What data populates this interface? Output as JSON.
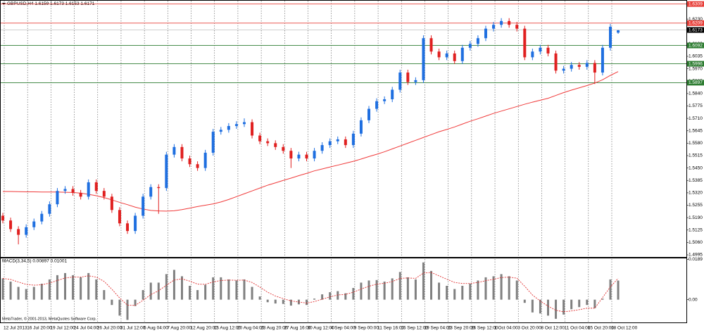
{
  "chart_data": [
    {
      "type": "candlestick",
      "title": "GBPUSD,H4  1.6159 1.6173 1.6153 1.6171",
      "up_color": "#1f6fe0",
      "down_color": "#e02020",
      "grid": true,
      "categories": [
        "12 Jul 2013",
        null,
        null,
        "16 Jul 20:00",
        null,
        null,
        "19 Jul 12:00",
        null,
        null,
        "24 Jul 04:00",
        null,
        null,
        "26 Jul 20:00",
        null,
        null,
        "31 Jul 12:00",
        null,
        null,
        "5 Aug 04:00",
        null,
        null,
        "7 Aug 20:00",
        null,
        null,
        "12 Aug 20:00",
        null,
        null,
        "15 Aug 12:00",
        null,
        null,
        "20 Aug 04:00",
        null,
        null,
        "23 Aug 20:00",
        null,
        null,
        "27 Aug 16:00",
        null,
        null,
        "30 Aug 12:00",
        null,
        null,
        "4 Sep 04:00",
        null,
        null,
        "9 Sep 00:00",
        null,
        null,
        "11 Sep 16:00",
        null,
        null,
        "16 Sep 12:00",
        null,
        null,
        "19 Sep 04:00",
        null,
        null,
        "23 Sep 20:00",
        null,
        null,
        "26 Sep 12:00",
        null,
        null,
        "1 Oct 04:00",
        null,
        null,
        "3 Oct 20:00",
        null,
        null,
        "8 Oct 12:00",
        null,
        null,
        "11 Oct 04:00",
        null,
        null,
        "15 Oct 20:00",
        null,
        null,
        "18 Oct 12:00",
        null
      ],
      "open": [
        1.52,
        1.5175,
        1.513,
        1.51,
        1.514,
        1.517,
        1.521,
        1.526,
        1.533,
        1.534,
        1.532,
        1.53,
        1.5375,
        1.533,
        1.53,
        1.523,
        1.516,
        1.512,
        1.52,
        1.53,
        1.535,
        1.5345,
        1.552,
        1.556,
        1.55,
        1.547,
        1.545,
        1.553,
        1.564,
        1.565,
        1.567,
        1.568,
        1.569,
        1.562,
        1.559,
        1.558,
        1.556,
        1.554,
        1.55,
        1.552,
        1.55,
        1.554,
        1.557,
        1.559,
        1.56,
        1.557,
        1.563,
        1.57,
        1.576,
        1.58,
        1.581,
        1.586,
        1.595,
        1.59,
        1.591,
        1.613,
        1.606,
        1.603,
        1.605,
        1.601,
        1.608,
        1.61,
        1.613,
        1.618,
        1.62,
        1.622,
        1.62,
        1.618,
        1.603,
        1.606,
        1.608,
        1.605,
        1.596,
        1.597,
        1.599,
        1.598,
        1.6,
        1.595,
        1.608,
        1.6159
      ],
      "high": [
        1.5215,
        1.519,
        1.5145,
        1.5155,
        1.5185,
        1.5225,
        1.5275,
        1.5345,
        1.5355,
        1.5355,
        1.5335,
        1.539,
        1.539,
        1.5345,
        1.5315,
        1.5245,
        1.5175,
        1.5215,
        1.5315,
        1.5365,
        1.5365,
        1.5535,
        1.5575,
        1.5575,
        1.5515,
        1.5485,
        1.5545,
        1.5655,
        1.5665,
        1.5685,
        1.5695,
        1.571,
        1.5705,
        1.5635,
        1.5605,
        1.5595,
        1.5575,
        1.5555,
        1.5535,
        1.5535,
        1.5555,
        1.5585,
        1.5605,
        1.5615,
        1.5615,
        1.5645,
        1.5715,
        1.5775,
        1.5815,
        1.5825,
        1.5875,
        1.5965,
        1.5965,
        1.5925,
        1.6145,
        1.6145,
        1.6075,
        1.6065,
        1.6065,
        1.6095,
        1.6115,
        1.6145,
        1.6195,
        1.6215,
        1.6235,
        1.6235,
        1.6215,
        1.6195,
        1.6075,
        1.6095,
        1.6095,
        1.6065,
        1.5985,
        1.6005,
        1.6005,
        1.6015,
        1.6015,
        1.6095,
        1.6205,
        1.6173
      ],
      "low": [
        1.516,
        1.5115,
        1.505,
        1.5085,
        1.5125,
        1.5155,
        1.5195,
        1.5245,
        1.5315,
        1.5305,
        1.5285,
        1.5285,
        1.5315,
        1.5285,
        1.5215,
        1.5145,
        1.5105,
        1.5105,
        1.5185,
        1.5285,
        1.521,
        1.533,
        1.5505,
        1.5485,
        1.5455,
        1.5435,
        1.5435,
        1.5515,
        1.5625,
        1.5635,
        1.5655,
        1.5665,
        1.5605,
        1.5575,
        1.5565,
        1.5545,
        1.5525,
        1.545,
        1.5485,
        1.5485,
        1.5485,
        1.5525,
        1.5555,
        1.5575,
        1.5555,
        1.5555,
        1.5615,
        1.5685,
        1.5745,
        1.5785,
        1.5795,
        1.5845,
        1.5885,
        1.5885,
        1.5895,
        1.6045,
        1.6015,
        1.6015,
        1.5995,
        1.5995,
        1.6065,
        1.6085,
        1.6115,
        1.6165,
        1.6185,
        1.6185,
        1.6165,
        1.6015,
        1.6015,
        1.6045,
        1.6035,
        1.5945,
        1.5945,
        1.5955,
        1.5965,
        1.5965,
        1.589,
        1.5935,
        1.6065,
        1.6153
      ],
      "close": [
        1.5175,
        1.513,
        1.51,
        1.514,
        1.517,
        1.521,
        1.526,
        1.533,
        1.534,
        1.532,
        1.53,
        1.5375,
        1.533,
        1.53,
        1.523,
        1.516,
        1.512,
        1.52,
        1.53,
        1.535,
        1.5345,
        1.552,
        1.556,
        1.55,
        1.547,
        1.545,
        1.553,
        1.564,
        1.565,
        1.567,
        1.568,
        1.569,
        1.562,
        1.559,
        1.558,
        1.556,
        1.554,
        1.55,
        1.552,
        1.55,
        1.554,
        1.557,
        1.559,
        1.56,
        1.557,
        1.563,
        1.57,
        1.576,
        1.58,
        1.581,
        1.586,
        1.595,
        1.59,
        1.591,
        1.613,
        1.606,
        1.603,
        1.605,
        1.601,
        1.608,
        1.61,
        1.613,
        1.618,
        1.62,
        1.622,
        1.62,
        1.618,
        1.603,
        1.606,
        1.608,
        1.605,
        1.596,
        1.597,
        1.599,
        1.598,
        1.6,
        1.595,
        1.608,
        1.619,
        1.6171
      ],
      "series": [
        {
          "color": "#f03a3a",
          "values": [
            1.5327,
            1.5327,
            1.5326,
            1.5325,
            1.5325,
            1.5324,
            1.5324,
            1.5324,
            1.5323,
            1.5322,
            1.5318,
            1.5312,
            1.5305,
            1.5295,
            1.5283,
            1.527,
            1.5258,
            1.5245,
            1.5235,
            1.5228,
            1.5225,
            1.5224,
            1.5226,
            1.5232,
            1.524,
            1.5248,
            1.5255,
            1.5262,
            1.5272,
            1.5285,
            1.53,
            1.5315,
            1.533,
            1.5345,
            1.536,
            1.5372,
            1.5385,
            1.5397,
            1.541,
            1.5422,
            1.5435,
            1.5445,
            1.5455,
            1.5465,
            1.5475,
            1.5485,
            1.5497,
            1.551,
            1.5522,
            1.5535,
            1.555,
            1.5565,
            1.558,
            1.5595,
            1.561,
            1.5625,
            1.564,
            1.5652,
            1.5665,
            1.568,
            1.5695,
            1.5708,
            1.5722,
            1.5736,
            1.5748,
            1.576,
            1.5772,
            1.5784,
            1.5795,
            1.5805,
            1.5815,
            1.583,
            1.5845,
            1.5858,
            1.587,
            1.5882,
            1.5895,
            1.5912,
            1.5935,
            1.5955
          ]
        }
      ],
      "levels": [
        {
          "value": 1.6309,
          "color": "#e8403a",
          "label_color": "#e8403a"
        },
        {
          "value": 1.6209,
          "color": "#e8403a",
          "label_color": "#e8403a"
        },
        {
          "value": 1.6173,
          "color": "#c8c8c8",
          "label_color": "#000000"
        },
        {
          "value": 1.6092,
          "color": "#2e7d32",
          "label_color": "#2e7d32"
        },
        {
          "value": 1.5996,
          "color": "#2e7d32",
          "label_color": "#2e7d32"
        },
        {
          "value": 1.5897,
          "color": "#2e7d32",
          "label_color": "#2e7d32"
        }
      ],
      "ylim": [
        1.4984,
        1.633
      ],
      "yticks": [
        {
          "value": 1.623,
          "label": "1.6230"
        },
        1.6165,
        {
          "value": 1.61,
          "label": "1.6100"
        },
        1.6035,
        {
          "value": 1.597,
          "label": "1.5970"
        },
        1.5905,
        {
          "value": 1.584,
          "label": "1.5840"
        },
        1.5775,
        {
          "value": 1.571,
          "label": "1.5710"
        },
        1.5645,
        {
          "value": 1.558,
          "label": "1.5580"
        },
        1.5515,
        {
          "value": 1.545,
          "label": "1.5450"
        },
        1.5385,
        {
          "value": 1.532,
          "label": "1.5320"
        },
        1.5255,
        {
          "value": 1.519,
          "label": "1.5190"
        },
        1.5125,
        {
          "value": 1.506,
          "label": "1.5060"
        },
        1.4995
      ]
    },
    {
      "type": "macd",
      "title": "MACD(3,34,5) 0.00897 0.01001",
      "annotation": "MetaTrader, © 2001-2013, MetaQuotes Software Corp.",
      "color": "#808080",
      "signal_color": "#e03030",
      "values": [
        0.01,
        0.0085,
        0.006,
        0.005,
        0.006,
        0.0075,
        0.0095,
        0.0115,
        0.0125,
        0.0115,
        0.0105,
        0.0125,
        0.0095,
        0.0045,
        -0.0025,
        -0.0075,
        -0.0095,
        -0.003,
        0.0045,
        0.008,
        0.008,
        0.012,
        0.014,
        0.011,
        0.0065,
        0.0045,
        0.007,
        0.0105,
        0.0105,
        0.0095,
        0.009,
        0.0095,
        0.006,
        0.0015,
        -0.0012,
        -0.0018,
        -0.002,
        -0.0028,
        -0.0022,
        -0.0025,
        0.0005,
        0.0025,
        0.0035,
        0.004,
        0.003,
        0.0055,
        0.008,
        0.009,
        0.0092,
        0.0085,
        0.01,
        0.013,
        0.0105,
        0.0095,
        0.0175,
        0.0135,
        0.008,
        0.0065,
        0.005,
        0.0065,
        0.0075,
        0.009,
        0.0105,
        0.011,
        0.012,
        0.011,
        0.009,
        -0.0015,
        -0.006,
        -0.0065,
        -0.0075,
        -0.009,
        -0.007,
        -0.0045,
        -0.0035,
        -0.0025,
        -0.004,
        0.0005,
        0.0095,
        0.00897
      ],
      "signal": [
        0.01,
        0.0095,
        0.0083,
        0.0072,
        0.0068,
        0.007,
        0.0078,
        0.009,
        0.0102,
        0.0106,
        0.0106,
        0.0112,
        0.0106,
        0.0086,
        0.0049,
        0.0008,
        -0.0026,
        -0.0027,
        -0.0003,
        0.0024,
        0.0042,
        0.0068,
        0.0092,
        0.0098,
        0.0087,
        0.0073,
        0.0072,
        0.0083,
        0.009,
        0.0092,
        0.0091,
        0.0092,
        0.0081,
        0.0059,
        0.0035,
        0.0017,
        0.0005,
        -0.0006,
        -0.0011,
        -0.0016,
        -0.0009,
        0.0002,
        0.0013,
        0.0022,
        0.0025,
        0.0035,
        0.005,
        0.0063,
        0.0073,
        0.0077,
        0.0085,
        0.01,
        0.0102,
        0.01,
        0.0125,
        0.0128,
        0.0112,
        0.0096,
        0.0081,
        0.0076,
        0.0076,
        0.0081,
        0.0089,
        0.0096,
        0.0104,
        0.0106,
        0.0101,
        0.0063,
        0.0022,
        -0.0007,
        -0.003,
        -0.005,
        -0.0057,
        -0.0053,
        -0.0047,
        -0.004,
        -0.004,
        0.001,
        0.006,
        0.01001
      ],
      "ylim": [
        -0.0107,
        0.0194
      ],
      "yticks": [
        0.0189,
        {
          "value": 0,
          "label": "0.00"
        }
      ]
    }
  ]
}
